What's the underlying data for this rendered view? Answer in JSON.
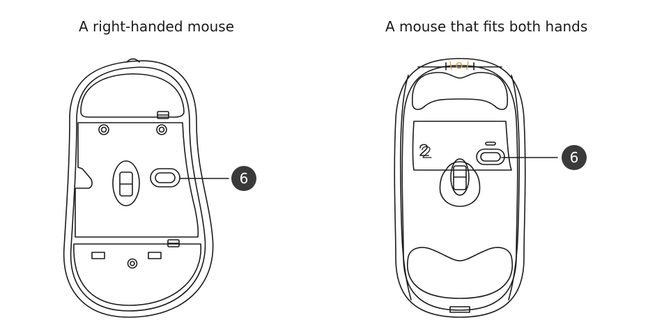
{
  "titles": {
    "left": "A right-handed mouse",
    "right": "A mouse that fits both hands"
  },
  "callouts": {
    "left": "6",
    "right": "6"
  },
  "colors": {
    "line": "#1a1a1a",
    "badge": "#3a3a3a",
    "accent": "#d9a441"
  }
}
